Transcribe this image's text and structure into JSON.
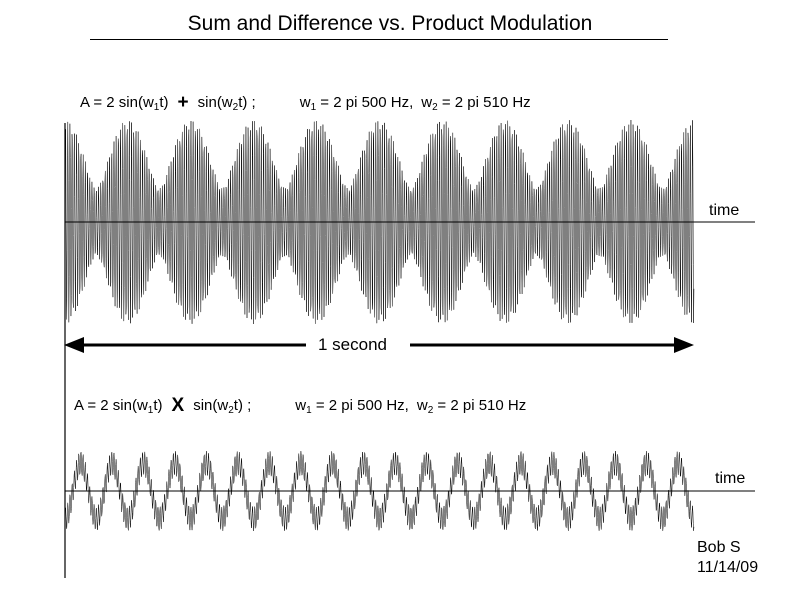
{
  "title": "Sum and Difference vs. Product Modulation",
  "eq_sum": {
    "lhs": "A = 2 sin(w",
    "sub1": "1",
    "mid1": "t)",
    "op": "+",
    "term2": "sin(w",
    "sub2": "2",
    "end2": "t) ;",
    "w1_pre": "w",
    "w1_sub": "1",
    "w1_val": " = 2 pi 500 Hz,",
    "w2_pre": "w",
    "w2_sub": "2",
    "w2_val": " = 2 pi 510 Hz"
  },
  "eq_product": {
    "lhs": "A = 2 sin(w",
    "sub1": "1",
    "mid1": "t)",
    "op": "X",
    "term2": "sin(w",
    "sub2": "2",
    "end2": "t) ;",
    "w1_pre": "w",
    "w1_sub": "1",
    "w1_val": " = 2 pi 500 Hz,",
    "w2_pre": "w",
    "w2_sub": "2",
    "w2_val": " = 2 pi 510 Hz"
  },
  "time_label_top": "time",
  "time_label_bottom": "time",
  "duration_label": "1 second",
  "author": "Bob S",
  "date": "11/14/09",
  "waves": {
    "sum_beats": 10,
    "product_cycles": 20,
    "color": "#000000"
  }
}
